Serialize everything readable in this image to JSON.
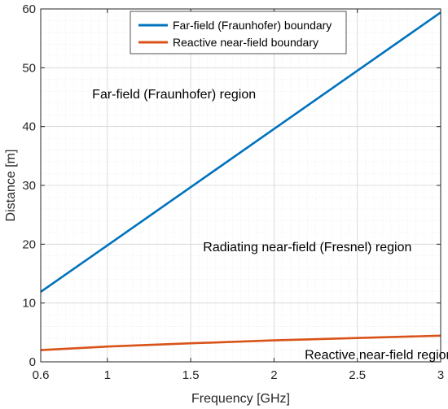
{
  "chart_data": {
    "type": "line",
    "xlabel": "Frequency [GHz]",
    "ylabel": "Distance [m]",
    "xlim": [
      0.6,
      3
    ],
    "ylim": [
      0,
      60
    ],
    "xticks": [
      0.6,
      1,
      1.5,
      2,
      2.5,
      3
    ],
    "xtick_labels": [
      "0.6",
      "1",
      "1.5",
      "2",
      "2.5",
      "3"
    ],
    "yticks": [
      0,
      10,
      20,
      30,
      40,
      50,
      60
    ],
    "ytick_labels": [
      "0",
      "10",
      "20",
      "30",
      "40",
      "50",
      "60"
    ],
    "grid": true,
    "minor_grid": true,
    "legend_position": "top-center",
    "series": [
      {
        "name": "Far-field (Fraunhofer) boundary",
        "color": "#0072BD",
        "x": [
          0.6,
          1,
          1.5,
          2,
          2.5,
          3
        ],
        "y": [
          11.9,
          19.8,
          29.7,
          39.6,
          49.5,
          59.4
        ]
      },
      {
        "name": "Reactive near-field boundary",
        "color": "#D95319",
        "x": [
          0.6,
          1,
          1.5,
          2,
          2.5,
          3
        ],
        "y": [
          2.0,
          2.6,
          3.15,
          3.65,
          4.05,
          4.45
        ]
      }
    ],
    "annotations": [
      {
        "text": "Far-field (Fraunhofer) region",
        "x": 1.4,
        "y": 45.5
      },
      {
        "text": "Radiating near-field (Fresnel) region",
        "x": 2.2,
        "y": 19.5
      },
      {
        "text": "Reactive near-field region",
        "x": 2.63,
        "y": 1.2
      }
    ]
  }
}
